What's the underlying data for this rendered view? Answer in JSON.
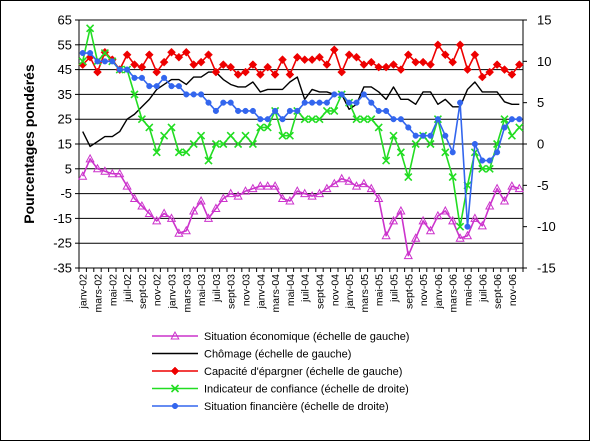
{
  "chart_data": {
    "type": "line",
    "title": "",
    "ylabel_left": "Pourcentages pondérés",
    "ylabel_right": "",
    "xlabel": "",
    "ylim_left": [
      -35,
      65
    ],
    "ylim_right": [
      -15,
      15
    ],
    "yticks_left": [
      "65",
      "55",
      "45",
      "35",
      "25",
      "15",
      "5",
      "-5",
      "-15",
      "-25",
      "-35"
    ],
    "yticks_right": [
      "15",
      "10",
      "5",
      "0",
      "-5",
      "-10",
      "-15"
    ],
    "grid": true,
    "legend_position": "bottom",
    "x_tick_labels": [
      "janv-02",
      "mars-02",
      "mai-02",
      "juil-02",
      "sept-02",
      "nov-02",
      "janv-03",
      "mars-03",
      "mai-03",
      "juil-03",
      "sept-03",
      "nov-03",
      "janv-04",
      "mars-04",
      "mai-04",
      "juil-04",
      "sept-04",
      "nov-04",
      "janv-05",
      "mars-05",
      "mai-05",
      "juil-05",
      "sept-05",
      "nov-05",
      "janv-06",
      "mars-06",
      "mai-06",
      "juil-06",
      "sept-06",
      "nov-06"
    ],
    "x_months": [
      "janv-02",
      "févr-02",
      "mars-02",
      "avr-02",
      "mai-02",
      "juin-02",
      "juil-02",
      "août-02",
      "sept-02",
      "oct-02",
      "nov-02",
      "déc-02",
      "janv-03",
      "févr-03",
      "mars-03",
      "avr-03",
      "mai-03",
      "juin-03",
      "juil-03",
      "août-03",
      "sept-03",
      "oct-03",
      "nov-03",
      "déc-03",
      "janv-04",
      "févr-04",
      "mars-04",
      "avr-04",
      "mai-04",
      "juin-04",
      "juil-04",
      "août-04",
      "sept-04",
      "oct-04",
      "nov-04",
      "déc-04",
      "janv-05",
      "févr-05",
      "mars-05",
      "avr-05",
      "mai-05",
      "juin-05",
      "juil-05",
      "août-05",
      "sept-05",
      "oct-05",
      "nov-05",
      "déc-05",
      "janv-06",
      "févr-06",
      "mars-06",
      "avr-06",
      "mai-06",
      "juin-06",
      "juil-06",
      "août-06",
      "sept-06",
      "oct-06",
      "nov-06",
      "déc-06"
    ],
    "series": [
      {
        "name": "Situation économique (échelle de gauche)",
        "axis": "left",
        "color": "#cc33cc",
        "marker": "triangle",
        "values": [
          2,
          9,
          5,
          4,
          3,
          3,
          -2,
          -7,
          -10,
          -13,
          -16,
          -13,
          -15,
          -21,
          -20,
          -12,
          -8,
          -15,
          -11,
          -7,
          -5,
          -6,
          -4,
          -3,
          -2,
          -2,
          -2,
          -7,
          -8,
          -4,
          -5,
          -6,
          -5,
          -3,
          -1,
          1,
          0,
          -2,
          -1,
          -3,
          -7,
          -22,
          -16,
          -12,
          -30,
          -23,
          -16,
          -20,
          -14,
          -12,
          -16,
          -23,
          -22,
          -15,
          -18,
          -10,
          -3,
          -8,
          -2,
          -3
        ]
      },
      {
        "name": "Chômage (échelle de gauche)",
        "axis": "left",
        "color": "#000000",
        "marker": "none",
        "values": [
          20,
          14,
          16,
          18,
          18,
          20,
          25,
          27,
          30,
          33,
          37,
          39,
          41,
          41,
          39,
          42,
          42,
          44,
          44,
          41,
          39,
          38,
          38,
          40,
          36,
          37,
          37,
          37,
          40,
          42,
          33,
          37,
          36,
          36,
          35,
          35,
          29,
          31,
          38,
          38,
          36,
          33,
          38,
          33,
          33,
          31,
          36,
          36,
          31,
          33,
          30,
          30,
          37,
          40,
          36,
          36,
          36,
          32,
          31,
          31
        ]
      },
      {
        "name": "Capacité d'épargner (échelle de gauche)",
        "axis": "left",
        "color": "#ee0000",
        "marker": "diamond",
        "values": [
          47,
          50,
          44,
          52,
          49,
          45,
          51,
          47,
          46,
          51,
          44,
          48,
          52,
          50,
          52,
          47,
          48,
          51,
          44,
          47,
          46,
          43,
          44,
          47,
          43,
          46,
          43,
          49,
          43,
          50,
          49,
          49,
          50,
          47,
          53,
          44,
          51,
          50,
          47,
          48,
          46,
          46,
          47,
          45,
          51,
          48,
          48,
          47,
          55,
          51,
          48,
          55,
          45,
          51,
          42,
          44,
          47,
          45,
          43,
          47
        ]
      },
      {
        "name": "Indicateur de confiance (échelle de droite)",
        "axis": "right",
        "color": "#22dd22",
        "marker": "x",
        "values": [
          10,
          14,
          10,
          11,
          10,
          9,
          9,
          6,
          3,
          2,
          -1,
          1,
          2,
          -1,
          -1,
          0,
          1,
          -2,
          0,
          0,
          1,
          0,
          1,
          0,
          2,
          2,
          4,
          1,
          1,
          4,
          3,
          3,
          3,
          4,
          4,
          6,
          5,
          3,
          3,
          3,
          2,
          -2,
          1,
          -1,
          -4,
          0,
          1,
          0,
          3,
          -1,
          -4,
          -10,
          -5,
          -1,
          -3,
          -3,
          0,
          3,
          1,
          2
        ]
      },
      {
        "name": "Situation financière (échelle de droite)",
        "axis": "right",
        "color": "#3366ee",
        "marker": "circle",
        "values": [
          11,
          11,
          10,
          10,
          10,
          9,
          9,
          8,
          8,
          7,
          7,
          8,
          7,
          7,
          6,
          6,
          6,
          5,
          4,
          5,
          5,
          4,
          4,
          4,
          3,
          3,
          4,
          3,
          4,
          4,
          5,
          5,
          5,
          5,
          6,
          6,
          5,
          5,
          6,
          5,
          4,
          4,
          3,
          3,
          2,
          1,
          1,
          1,
          3,
          1,
          -1,
          5,
          -10,
          0,
          -2,
          -2,
          -1,
          2,
          3,
          3
        ]
      }
    ]
  }
}
